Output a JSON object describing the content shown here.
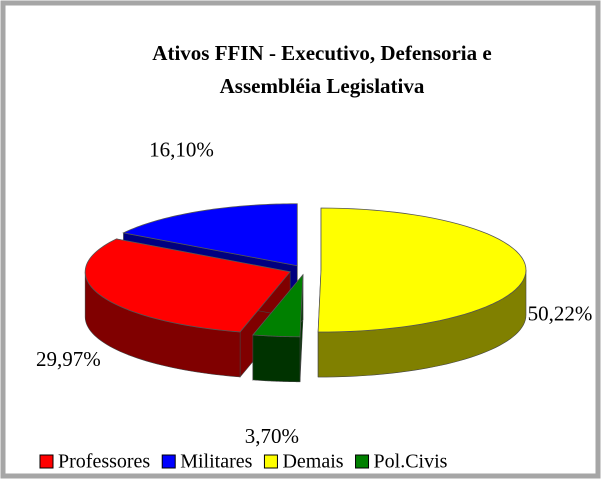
{
  "chart_data": {
    "type": "pie",
    "title": [
      "Ativos FFIN - Executivo, Defensoria  e",
      "Assembléia Legislativa"
    ],
    "categories": [
      "Professores",
      "Militares",
      "Demais",
      "Pol.Civis"
    ],
    "values": [
      29.97,
      16.1,
      50.22,
      3.7
    ],
    "value_labels": [
      "29,97%",
      "16,10%",
      "50,22%",
      "3,70%"
    ],
    "colors": [
      "#ff0000",
      "#0000ff",
      "#ffff00",
      "#008000"
    ],
    "side_colors": [
      "#800000",
      "#000080",
      "#808000",
      "#003300"
    ],
    "legend": "bottom"
  }
}
